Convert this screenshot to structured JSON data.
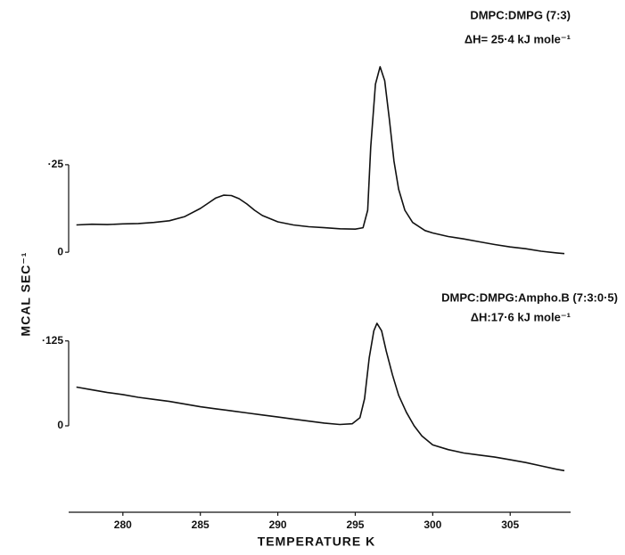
{
  "chart_data": [
    {
      "type": "line",
      "annotations": [
        "DMPC:DMPG (7:3)",
        "ΔH= 25·4 kJ mole⁻¹"
      ],
      "x": [
        277,
        278,
        279,
        280,
        281,
        282,
        283,
        284,
        285,
        285.5,
        286,
        286.5,
        287,
        287.5,
        288,
        288.5,
        289,
        290,
        291,
        292,
        293,
        294,
        295,
        295.5,
        295.8,
        296,
        296.3,
        296.6,
        296.9,
        297.2,
        297.5,
        297.8,
        298.2,
        298.7,
        299.5,
        300,
        301,
        302,
        303,
        304,
        305,
        306,
        307,
        308,
        308.5
      ],
      "values": [
        0.078,
        0.08,
        0.079,
        0.081,
        0.082,
        0.085,
        0.09,
        0.102,
        0.125,
        0.14,
        0.155,
        0.163,
        0.162,
        0.153,
        0.138,
        0.12,
        0.105,
        0.087,
        0.078,
        0.073,
        0.07,
        0.067,
        0.066,
        0.07,
        0.12,
        0.3,
        0.48,
        0.53,
        0.49,
        0.38,
        0.26,
        0.18,
        0.12,
        0.085,
        0.062,
        0.055,
        0.045,
        0.038,
        0.03,
        0.022,
        0.015,
        0.01,
        0.003,
        -0.002,
        -0.004
      ],
      "ylim": [
        -0.02,
        0.55
      ],
      "yticks": [
        0,
        {
          "value": 0.25,
          "label": "·25"
        }
      ]
    },
    {
      "type": "line",
      "annotations": [
        "DMPC:DMPG:Ampho.B (7:3:0·5)",
        "ΔH:17·6 kJ mole⁻¹"
      ],
      "ylabel": "MCAL SEC⁻¹",
      "xlabel": "TEMPERATURE  K",
      "x": [
        277,
        278,
        279,
        280,
        281,
        282,
        283,
        284,
        285,
        286,
        287,
        288,
        289,
        290,
        291,
        292,
        293,
        294,
        294.8,
        295.3,
        295.6,
        295.9,
        296.2,
        296.4,
        296.7,
        297,
        297.4,
        297.8,
        298.3,
        298.8,
        299.3,
        300,
        301,
        302,
        303,
        304,
        305,
        306,
        307,
        308,
        308.5
      ],
      "values": [
        0.057,
        0.053,
        0.049,
        0.046,
        0.042,
        0.039,
        0.036,
        0.032,
        0.028,
        0.025,
        0.022,
        0.019,
        0.016,
        0.013,
        0.01,
        0.007,
        0.004,
        0.002,
        0.003,
        0.012,
        0.04,
        0.1,
        0.14,
        0.151,
        0.14,
        0.11,
        0.075,
        0.045,
        0.02,
        0.0,
        -0.015,
        -0.028,
        -0.035,
        -0.04,
        -0.043,
        -0.046,
        -0.05,
        -0.054,
        -0.059,
        -0.064,
        -0.066
      ],
      "ylim": [
        -0.08,
        0.16
      ],
      "yticks": [
        0,
        {
          "value": 0.125,
          "label": "·125"
        }
      ],
      "xlim": [
        276.5,
        308.9
      ],
      "xticks": [
        280,
        285,
        290,
        295,
        300,
        305
      ]
    }
  ]
}
